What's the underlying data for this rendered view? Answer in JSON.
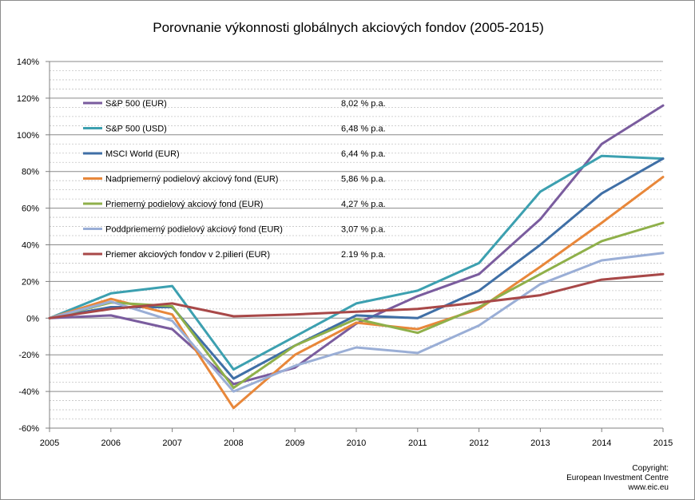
{
  "chart_data": {
    "type": "line",
    "title": "Porovnanie výkonnosti globálnych akciových fondov (2005-2015)",
    "x": [
      "2005",
      "2006",
      "2007",
      "2008",
      "2009",
      "2010",
      "2011",
      "2012",
      "2013",
      "2014",
      "2015"
    ],
    "xlabel": "",
    "ylabel": "",
    "ylim": [
      -60,
      140
    ],
    "y_ticks": [
      "140%",
      "120%",
      "100%",
      "80%",
      "60%",
      "40%",
      "20%",
      "0%",
      "-20%",
      "-40%",
      "-60%"
    ],
    "y_tick_values": [
      140,
      120,
      100,
      80,
      60,
      40,
      20,
      0,
      -20,
      -40,
      -60
    ],
    "grid": true,
    "legend_position": "top-left",
    "series": [
      {
        "name": "S&P 500 (EUR)",
        "rate": "8,02 % p.a.",
        "color": "#7a5c9e",
        "values": [
          0,
          1.5,
          -6,
          -36,
          -27,
          -3,
          12,
          24,
          54,
          95,
          116
        ]
      },
      {
        "name": "S&P 500 (USD)",
        "rate": "6,48 % p.a.",
        "color": "#3ca0b0",
        "values": [
          0,
          13.5,
          17.5,
          -28,
          -10,
          8,
          15,
          30,
          69,
          88.5,
          87
        ]
      },
      {
        "name": "MSCI World (EUR)",
        "rate": "6,44 % p.a.",
        "color": "#3f6fa6",
        "values": [
          0,
          6,
          6,
          -33,
          -15,
          1.5,
          0,
          15,
          40,
          68,
          87
        ]
      },
      {
        "name": "Nadpriemerný podielový akciový fond  (EUR)",
        "rate": "5,86 % p.a.",
        "color": "#e8873a",
        "values": [
          0,
          10.5,
          2,
          -49,
          -20,
          -2.5,
          -6,
          5,
          28,
          52,
          77
        ]
      },
      {
        "name": "Priemerný podielový akciový fond (EUR)",
        "rate": "4,27 % p.a.",
        "color": "#8fb04a",
        "values": [
          0,
          8.5,
          6.5,
          -38,
          -15,
          -0.5,
          -8,
          6,
          24,
          42,
          52
        ]
      },
      {
        "name": "Poddpriemerný podielový akciový fond  (EUR)",
        "rate": "3,07 % p.a.",
        "color": "#9aaed6",
        "values": [
          0,
          9,
          -1.5,
          -40,
          -26,
          -16,
          -19,
          -4,
          18.5,
          31.5,
          35.5
        ]
      },
      {
        "name": "Priemer akciových fondov v 2.pilieri (EUR)",
        "rate": "2.19 % p.a.",
        "color": "#a84848",
        "values": [
          0,
          5,
          8,
          1,
          2,
          3.5,
          5,
          8.5,
          12.5,
          21,
          24
        ]
      }
    ]
  },
  "copyright": [
    "Copyright:",
    "European Investment Centre",
    "www.eic.eu"
  ]
}
